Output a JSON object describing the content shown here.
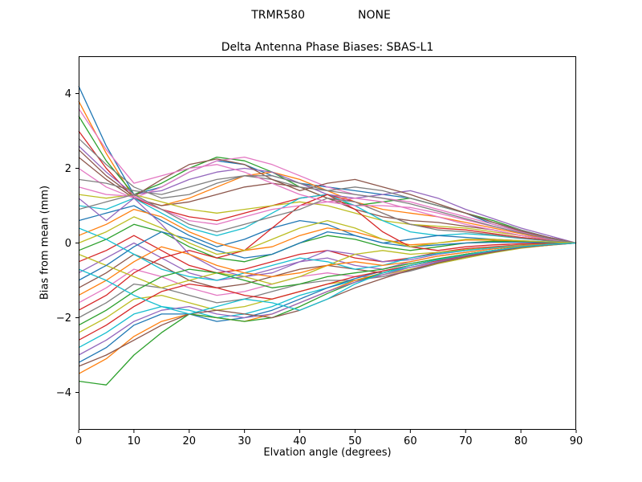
{
  "header": {
    "left": "TRMR580",
    "right": "NONE"
  },
  "chart_data": {
    "type": "line",
    "title": "Delta Antenna Phase Biases: SBAS-L1",
    "xlabel": "Elvation angle (degrees)",
    "ylabel": "Bias from mean (mm)",
    "xlim": [
      0,
      90
    ],
    "ylim": [
      -5,
      5
    ],
    "xticks": [
      0,
      10,
      20,
      30,
      40,
      50,
      60,
      70,
      80,
      90
    ],
    "yticks": [
      -4,
      -2,
      0,
      2,
      4
    ],
    "grid": false,
    "legend": "none",
    "axis_color": "#000000",
    "line_width": 1.3,
    "palette": [
      "#1f77b4",
      "#ff7f0e",
      "#2ca02c",
      "#d62728",
      "#9467bd",
      "#8c564b",
      "#e377c2",
      "#7f7f7f",
      "#bcbd22",
      "#17becf"
    ],
    "x": [
      0,
      5,
      10,
      15,
      20,
      25,
      30,
      35,
      40,
      45,
      50,
      55,
      60,
      65,
      70,
      75,
      80,
      85,
      90
    ],
    "series": [
      [
        4.2,
        2.6,
        1.3,
        1.5,
        1.9,
        2.2,
        2.1,
        1.8,
        1.6,
        1.5,
        1.4,
        1.3,
        1.2,
        1.0,
        0.8,
        0.5,
        0.3,
        0.15,
        0
      ],
      [
        3.8,
        2.4,
        1.2,
        1.0,
        1.2,
        1.5,
        1.8,
        1.9,
        1.7,
        1.4,
        1.1,
        0.9,
        0.8,
        0.7,
        0.55,
        0.4,
        0.25,
        0.1,
        0
      ],
      [
        3.4,
        2.2,
        1.3,
        1.6,
        2.0,
        2.3,
        2.2,
        1.9,
        1.5,
        1.2,
        1.0,
        1.1,
        1.2,
        1.0,
        0.8,
        0.6,
        0.35,
        0.15,
        0
      ],
      [
        3.0,
        2.0,
        1.2,
        0.9,
        0.7,
        0.6,
        0.8,
        1.0,
        1.2,
        1.3,
        1.1,
        0.8,
        0.5,
        0.4,
        0.35,
        0.25,
        0.15,
        0.08,
        0
      ],
      [
        2.6,
        1.9,
        1.3,
        1.4,
        1.7,
        1.9,
        2.0,
        1.9,
        1.6,
        1.3,
        1.2,
        1.3,
        1.4,
        1.2,
        0.9,
        0.65,
        0.4,
        0.2,
        0
      ],
      [
        2.3,
        1.7,
        1.2,
        1.0,
        1.1,
        1.3,
        1.5,
        1.6,
        1.5,
        1.2,
        0.9,
        0.7,
        0.6,
        0.55,
        0.45,
        0.35,
        0.2,
        0.1,
        0
      ],
      [
        2.0,
        1.5,
        1.2,
        1.5,
        1.9,
        2.2,
        2.3,
        2.1,
        1.8,
        1.5,
        1.3,
        1.2,
        1.1,
        0.9,
        0.7,
        0.5,
        0.3,
        0.15,
        0
      ],
      [
        1.7,
        1.6,
        1.4,
        1.3,
        1.5,
        1.7,
        1.8,
        1.7,
        1.5,
        1.4,
        1.5,
        1.4,
        1.2,
        1.0,
        0.8,
        0.55,
        0.35,
        0.15,
        0
      ],
      [
        1.3,
        1.2,
        1.3,
        1.1,
        0.9,
        0.8,
        0.9,
        1.0,
        1.1,
        1.0,
        0.8,
        0.6,
        0.5,
        0.45,
        0.4,
        0.3,
        0.2,
        0.1,
        0
      ],
      [
        1.0,
        0.9,
        1.2,
        0.8,
        0.4,
        0.2,
        0.4,
        0.8,
        1.2,
        1.3,
        1.0,
        0.6,
        0.3,
        0.2,
        0.25,
        0.2,
        0.12,
        0.06,
        0
      ],
      [
        0.6,
        0.8,
        1.0,
        0.6,
        0.2,
        -0.1,
        0.1,
        0.4,
        0.6,
        0.5,
        0.2,
        0.0,
        0.1,
        0.2,
        0.15,
        0.1,
        0.06,
        0.03,
        0
      ],
      [
        0.2,
        0.5,
        0.9,
        0.7,
        0.3,
        0.0,
        -0.2,
        -0.1,
        0.2,
        0.4,
        0.3,
        0.1,
        -0.05,
        0.0,
        0.08,
        0.08,
        0.05,
        0.02,
        0
      ],
      [
        -0.2,
        0.1,
        0.5,
        0.3,
        -0.1,
        -0.4,
        -0.5,
        -0.3,
        0.0,
        0.2,
        0.1,
        -0.1,
        -0.2,
        -0.1,
        0.0,
        0.05,
        0.03,
        0.01,
        0
      ],
      [
        -0.5,
        -0.2,
        0.2,
        -0.2,
        -0.6,
        -0.8,
        -0.7,
        -0.5,
        -0.3,
        -0.2,
        -0.4,
        -0.5,
        -0.4,
        -0.25,
        -0.15,
        -0.1,
        -0.05,
        -0.02,
        0
      ],
      [
        -0.8,
        -0.4,
        0.0,
        -0.4,
        -0.8,
        -1.0,
        -0.9,
        -0.7,
        -0.5,
        -0.4,
        -0.6,
        -0.7,
        -0.5,
        -0.35,
        -0.25,
        -0.15,
        -0.08,
        -0.04,
        0
      ],
      [
        -1.2,
        -0.8,
        -0.3,
        -0.6,
        -1.0,
        -1.2,
        -1.1,
        -0.9,
        -0.7,
        -0.6,
        -0.7,
        -0.8,
        -0.6,
        -0.45,
        -0.3,
        -0.2,
        -0.1,
        -0.05,
        0
      ],
      [
        -1.6,
        -1.2,
        -0.7,
        -0.9,
        -1.2,
        -1.4,
        -1.3,
        -1.1,
        -0.9,
        -0.8,
        -0.9,
        -0.9,
        -0.7,
        -0.5,
        -0.35,
        -0.22,
        -0.12,
        -0.05,
        0
      ],
      [
        -2.0,
        -1.6,
        -1.1,
        -1.2,
        -1.4,
        -1.6,
        -1.5,
        -1.3,
        -1.1,
        -1.0,
        -1.0,
        -0.9,
        -0.75,
        -0.55,
        -0.4,
        -0.25,
        -0.13,
        -0.06,
        0
      ],
      [
        -2.4,
        -2.0,
        -1.5,
        -1.4,
        -1.6,
        -1.8,
        -1.7,
        -1.5,
        -1.3,
        -1.1,
        -1.0,
        -0.85,
        -0.7,
        -0.55,
        -0.4,
        -0.26,
        -0.14,
        -0.06,
        0
      ],
      [
        -2.8,
        -2.4,
        -1.9,
        -1.7,
        -1.8,
        -2.0,
        -1.9,
        -1.7,
        -1.4,
        -1.2,
        -1.0,
        -0.8,
        -0.65,
        -0.5,
        -0.36,
        -0.24,
        -0.12,
        -0.05,
        0
      ],
      [
        -3.2,
        -2.8,
        -2.2,
        -1.9,
        -1.9,
        -2.1,
        -2.0,
        -1.8,
        -1.5,
        -1.2,
        -0.95,
        -0.75,
        -0.6,
        -0.45,
        -0.33,
        -0.22,
        -0.11,
        -0.05,
        0
      ],
      [
        -3.5,
        -3.1,
        -2.5,
        -2.1,
        -1.9,
        -2.0,
        -2.1,
        -1.9,
        -1.6,
        -1.3,
        -1.0,
        -0.8,
        -0.6,
        -0.45,
        -0.32,
        -0.2,
        -0.1,
        -0.04,
        0
      ],
      [
        -3.7,
        -3.8,
        -3.0,
        -2.4,
        -1.9,
        -2.0,
        -2.1,
        -2.0,
        -1.7,
        -1.35,
        -1.05,
        -0.8,
        -0.6,
        -0.44,
        -0.3,
        -0.2,
        -0.1,
        -0.04,
        0
      ],
      [
        -1.8,
        -1.4,
        -0.8,
        -0.4,
        -0.2,
        -0.4,
        -0.2,
        0.4,
        1.0,
        1.3,
        0.9,
        0.3,
        -0.1,
        -0.2,
        -0.1,
        -0.05,
        -0.02,
        -0.01,
        0
      ],
      [
        1.2,
        0.6,
        1.2,
        0.5,
        -0.3,
        -0.7,
        -0.9,
        -0.8,
        -0.5,
        -0.2,
        -0.3,
        -0.5,
        -0.45,
        -0.3,
        -0.2,
        -0.12,
        -0.06,
        -0.03,
        0
      ],
      [
        2.5,
        1.8,
        1.25,
        1.7,
        2.1,
        2.25,
        2.1,
        1.7,
        1.4,
        1.6,
        1.7,
        1.5,
        1.3,
        1.05,
        0.8,
        0.55,
        0.32,
        0.15,
        0
      ],
      [
        1.5,
        1.3,
        1.25,
        0.9,
        0.6,
        0.5,
        0.7,
        0.9,
        1.0,
        1.1,
        1.2,
        1.1,
        0.9,
        0.7,
        0.5,
        0.35,
        0.2,
        0.1,
        0
      ],
      [
        0.9,
        1.1,
        1.3,
        0.9,
        0.5,
        0.3,
        0.5,
        0.7,
        0.9,
        1.2,
        1.1,
        0.8,
        0.5,
        0.35,
        0.3,
        0.22,
        0.13,
        0.06,
        0
      ],
      [
        -0.3,
        -0.6,
        -0.9,
        -1.2,
        -1.0,
        -0.8,
        -0.9,
        -1.1,
        -0.9,
        -0.6,
        -0.3,
        -0.2,
        -0.3,
        -0.25,
        -0.18,
        -0.12,
        -0.06,
        -0.03,
        0
      ],
      [
        0.4,
        0.1,
        -0.3,
        -0.7,
        -0.9,
        -1.0,
        -0.8,
        -0.6,
        -0.4,
        -0.5,
        -0.7,
        -0.6,
        -0.4,
        -0.28,
        -0.2,
        -0.13,
        -0.07,
        -0.03,
        0
      ],
      [
        -1.0,
        -0.6,
        -0.1,
        0.3,
        0.1,
        -0.2,
        -0.4,
        -0.3,
        0.0,
        0.3,
        0.2,
        0.0,
        -0.1,
        -0.05,
        0.0,
        0.02,
        0.02,
        0.01,
        0
      ],
      [
        -1.4,
        -1.0,
        -0.5,
        -0.1,
        -0.3,
        -0.6,
        -0.8,
        -0.9,
        -0.8,
        -0.6,
        -0.5,
        -0.6,
        -0.5,
        -0.35,
        -0.25,
        -0.16,
        -0.08,
        -0.03,
        0
      ],
      [
        -2.2,
        -1.8,
        -1.3,
        -0.9,
        -0.7,
        -0.8,
        -1.0,
        -1.2,
        -1.1,
        -0.9,
        -0.8,
        -0.7,
        -0.55,
        -0.42,
        -0.3,
        -0.2,
        -0.1,
        -0.04,
        0
      ],
      [
        -2.6,
        -2.2,
        -1.7,
        -1.3,
        -1.1,
        -1.2,
        -1.4,
        -1.5,
        -1.3,
        -1.1,
        -0.9,
        -0.75,
        -0.6,
        -0.47,
        -0.34,
        -0.22,
        -0.11,
        -0.05,
        0
      ],
      [
        -3.0,
        -2.6,
        -2.1,
        -1.8,
        -1.7,
        -1.9,
        -2.0,
        -1.9,
        -1.6,
        -1.3,
        -1.05,
        -0.85,
        -0.65,
        -0.5,
        -0.36,
        -0.23,
        -0.12,
        -0.05,
        0
      ],
      [
        -3.3,
        -3.0,
        -2.6,
        -2.2,
        -1.9,
        -1.8,
        -1.9,
        -2.0,
        -1.8,
        -1.5,
        -1.2,
        -0.95,
        -0.72,
        -0.53,
        -0.37,
        -0.24,
        -0.12,
        -0.05,
        0
      ],
      [
        3.6,
        2.5,
        1.6,
        1.8,
        2.0,
        2.1,
        1.9,
        1.6,
        1.3,
        1.1,
        1.0,
        1.0,
        0.95,
        0.8,
        0.62,
        0.44,
        0.27,
        0.12,
        0
      ],
      [
        2.8,
        2.1,
        1.5,
        1.2,
        1.3,
        1.6,
        1.8,
        1.8,
        1.6,
        1.4,
        1.3,
        1.2,
        1.05,
        0.85,
        0.65,
        0.45,
        0.27,
        0.12,
        0
      ],
      [
        0.0,
        0.3,
        0.7,
        0.4,
        0.0,
        -0.3,
        -0.2,
        0.1,
        0.4,
        0.6,
        0.4,
        0.1,
        -0.1,
        0.0,
        0.1,
        0.1,
        0.06,
        0.03,
        0
      ],
      [
        -0.7,
        -1.0,
        -1.4,
        -1.7,
        -1.9,
        -1.7,
        -1.5,
        -1.6,
        -1.8,
        -1.5,
        -1.1,
        -0.8,
        -0.6,
        -0.45,
        -0.32,
        -0.2,
        -0.1,
        -0.04,
        0
      ]
    ]
  }
}
